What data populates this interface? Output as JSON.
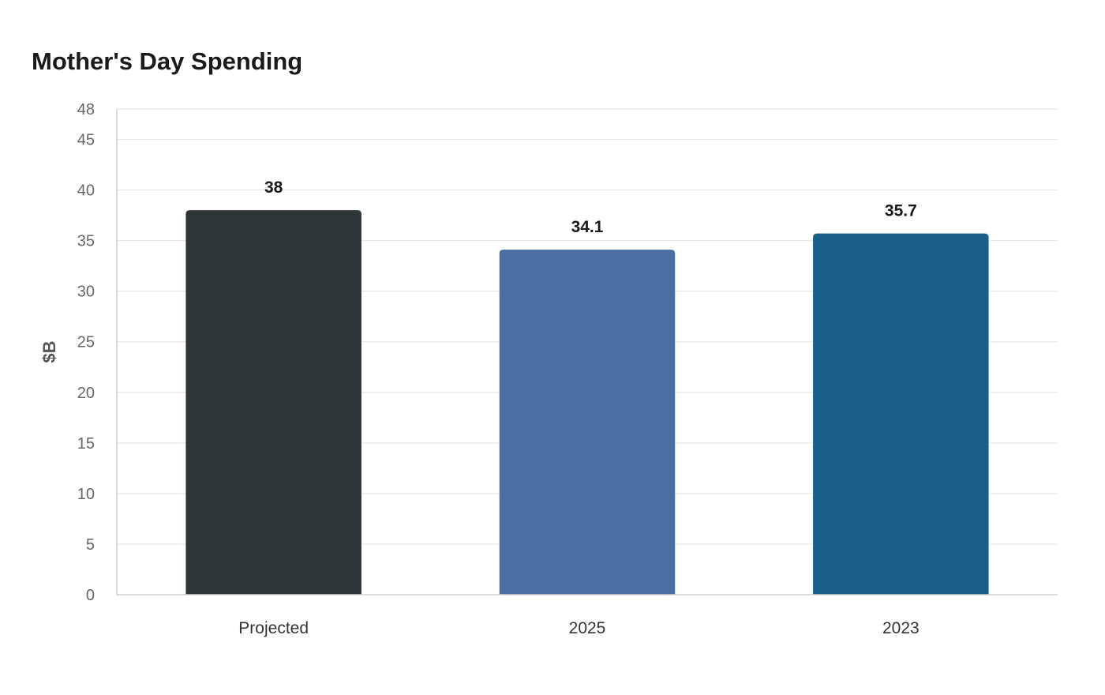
{
  "chart_data": {
    "type": "bar",
    "title": "Mother's Day Spending",
    "xlabel": "",
    "ylabel": "$B",
    "categories": [
      "Projected",
      "2025",
      "2023"
    ],
    "values": [
      38,
      34.1,
      35.7
    ],
    "value_labels": [
      "38",
      "34.1",
      "35.7"
    ],
    "colors": [
      "#2e3538",
      "#4a6fa1",
      "#186088"
    ],
    "ylim": [
      0,
      48
    ],
    "yticks": [
      0,
      5,
      10,
      15,
      20,
      25,
      30,
      35,
      40,
      45,
      48
    ],
    "grid": true,
    "legend": "none"
  }
}
